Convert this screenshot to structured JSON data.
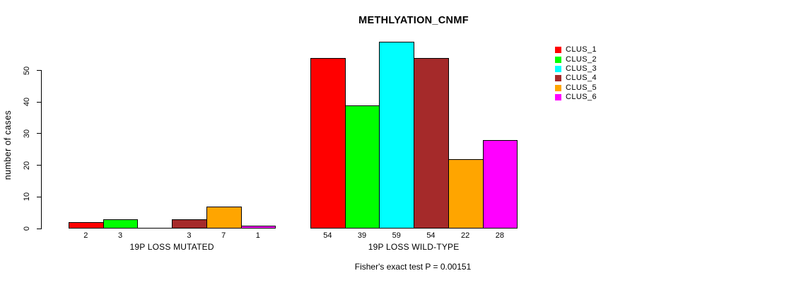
{
  "chart_data": {
    "type": "bar",
    "title": "METHLYATION_CNMF",
    "ylabel": "number of cases",
    "yticks": [
      0,
      10,
      20,
      30,
      40,
      50
    ],
    "ylim": [
      0,
      59
    ],
    "grid": false,
    "legend_position": "right",
    "series": [
      {
        "name": "CLUS_1",
        "color": "#FF0000"
      },
      {
        "name": "CLUS_2",
        "color": "#00FF00"
      },
      {
        "name": "CLUS_3",
        "color": "#00FFFF"
      },
      {
        "name": "CLUS_4",
        "color": "#A52A2A"
      },
      {
        "name": "CLUS_5",
        "color": "#FFA500"
      },
      {
        "name": "CLUS_6",
        "color": "#FF00FF"
      }
    ],
    "groups": [
      {
        "label": "19P LOSS MUTATED",
        "values": [
          2,
          3,
          0,
          3,
          7,
          1
        ],
        "bar_labels": [
          "2",
          "3",
          "",
          "3",
          "7",
          "1"
        ]
      },
      {
        "label": "19P LOSS WILD-TYPE",
        "values": [
          54,
          39,
          59,
          54,
          22,
          28
        ],
        "bar_labels": [
          "54",
          "39",
          "59",
          "54",
          "22",
          "28"
        ]
      }
    ],
    "footnote": "Fisher's exact test P = 0.00151"
  }
}
